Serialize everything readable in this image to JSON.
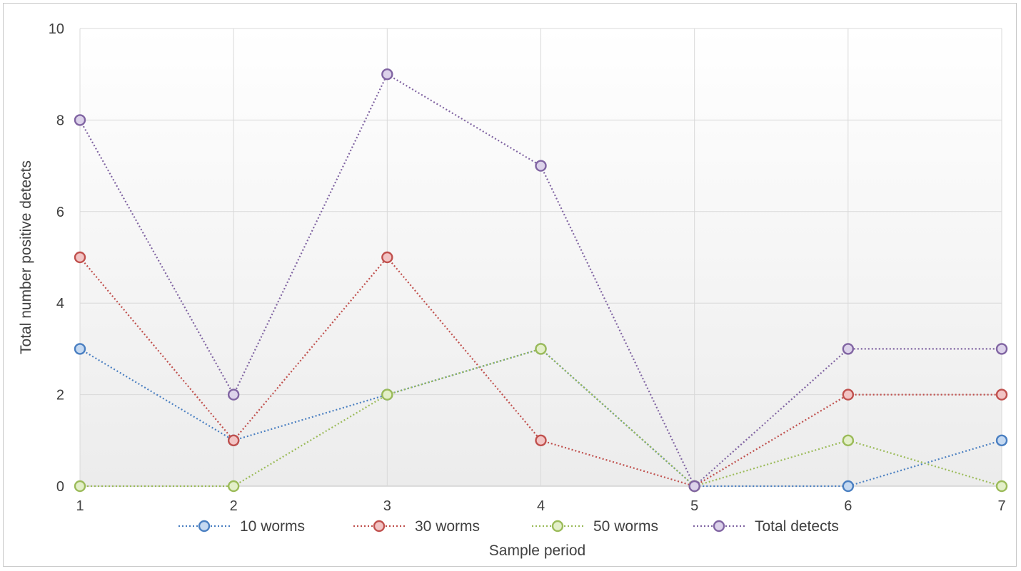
{
  "chart_data": {
    "type": "line",
    "title": "",
    "xlabel": "Sample period",
    "ylabel": "Total number positive detects",
    "categories": [
      "1",
      "2",
      "3",
      "4",
      "5",
      "6",
      "7"
    ],
    "yticks": [
      "0",
      "2",
      "4",
      "6",
      "8",
      "10"
    ],
    "ylim": [
      0,
      10
    ],
    "grid": true,
    "legend_position": "bottom",
    "series": [
      {
        "name": "10 worms",
        "values": [
          3,
          1,
          2,
          3,
          0,
          0,
          1
        ],
        "color": "#4a7fc1",
        "fill": "#c5d9f1"
      },
      {
        "name": "30 worms",
        "values": [
          5,
          1,
          5,
          1,
          0,
          2,
          2
        ],
        "color": "#c0504d",
        "fill": "#f2c4c4"
      },
      {
        "name": "50 worms",
        "values": [
          0,
          0,
          2,
          3,
          0,
          1,
          0
        ],
        "color": "#9bbb59",
        "fill": "#e3efc9"
      },
      {
        "name": "Total detects",
        "values": [
          8,
          2,
          9,
          7,
          0,
          3,
          3
        ],
        "color": "#8064a2",
        "fill": "#dcd2ea"
      }
    ]
  }
}
